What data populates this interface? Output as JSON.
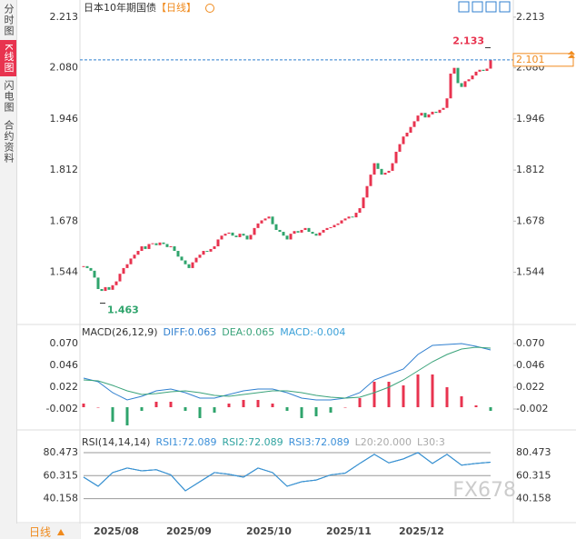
{
  "sidebar_tabs": [
    "分时图",
    "K线图",
    "闪电图",
    "合约资料"
  ],
  "bottom_tab": "日线",
  "watermark": "FX678",
  "chart_data": [
    {
      "type": "candlestick",
      "title": "日本10年期国债",
      "period": "【日线】",
      "up_color": "#e8334f",
      "down_color": "#2fa46c",
      "values": [
        1.56,
        1.555,
        1.548,
        1.53,
        1.5,
        1.495,
        1.505,
        1.498,
        1.51,
        1.52,
        1.54,
        1.555,
        1.565,
        1.58,
        1.59,
        1.6,
        1.612,
        1.605,
        1.618,
        1.62,
        1.615,
        1.622,
        1.618,
        1.61,
        1.612,
        1.6,
        1.585,
        1.575,
        1.565,
        1.555,
        1.57,
        1.582,
        1.59,
        1.6,
        1.598,
        1.605,
        1.612,
        1.63,
        1.64,
        1.645,
        1.648,
        1.64,
        1.636,
        1.645,
        1.64,
        1.63,
        1.642,
        1.66,
        1.672,
        1.68,
        1.685,
        1.69,
        1.67,
        1.655,
        1.65,
        1.64,
        1.63,
        1.645,
        1.652,
        1.648,
        1.655,
        1.66,
        1.65,
        1.645,
        1.64,
        1.648,
        1.655,
        1.66,
        1.662,
        1.668,
        1.672,
        1.68,
        1.685,
        1.69,
        1.688,
        1.7,
        1.712,
        1.74,
        1.77,
        1.8,
        1.83,
        1.815,
        1.8,
        1.805,
        1.81,
        1.83,
        1.86,
        1.88,
        1.9,
        1.91,
        1.925,
        1.94,
        1.955,
        1.962,
        1.95,
        1.958,
        1.965,
        1.962,
        1.97,
        1.975,
        2.0,
        2.065,
        2.08,
        2.04,
        2.03,
        2.045,
        2.05,
        2.06,
        2.07,
        2.075,
        2.072,
        2.078,
        2.101
      ],
      "high": 2.133,
      "low": 1.463,
      "ylim": [
        1.407,
        2.258
      ],
      "yticks": [
        2.213,
        {
          "value": 2.08,
          "label": "2.080"
        },
        1.946,
        1.812,
        1.678,
        1.544
      ],
      "xticks": [
        {
          "value": 9,
          "label": "2025/08"
        },
        {
          "value": 29,
          "label": "2025/09"
        },
        {
          "value": 51,
          "label": "2025/10"
        },
        {
          "value": 73,
          "label": "2025/11"
        },
        {
          "value": 93,
          "label": "2025/12"
        }
      ]
    },
    {
      "type": "macd",
      "title": "MACD(26,12,9)",
      "series": [
        {
          "name": "DIFF:0.063",
          "color": "#2f7fcf",
          "values": [
            0.032,
            0.028,
            0.016,
            0.008,
            0.012,
            0.018,
            0.02,
            0.016,
            0.01,
            0.01,
            0.014,
            0.018,
            0.02,
            0.02,
            0.016,
            0.01,
            0.008,
            0.008,
            0.01,
            0.016,
            0.03,
            0.036,
            0.042,
            0.058,
            0.068,
            0.069,
            0.07,
            0.067,
            0.063
          ]
        },
        {
          "name": "DEA:0.065",
          "color": "#3aa37a",
          "values": [
            0.03,
            0.029,
            0.024,
            0.018,
            0.014,
            0.015,
            0.017,
            0.018,
            0.016,
            0.013,
            0.012,
            0.014,
            0.016,
            0.018,
            0.018,
            0.016,
            0.013,
            0.011,
            0.01,
            0.011,
            0.016,
            0.022,
            0.03,
            0.04,
            0.05,
            0.058,
            0.064,
            0.066,
            0.065
          ]
        },
        {
          "name": "MACD:-0.004",
          "color": "#3aa0d8",
          "values": [
            0.004,
            0.0,
            -0.016,
            -0.02,
            -0.004,
            0.006,
            0.006,
            -0.004,
            -0.012,
            -0.006,
            0.004,
            0.008,
            0.008,
            0.004,
            -0.004,
            -0.012,
            -0.01,
            -0.006,
            0.0,
            0.01,
            0.028,
            0.028,
            0.024,
            0.036,
            0.036,
            0.022,
            0.012,
            0.002,
            -0.004
          ]
        }
      ],
      "up_color": "#e8334f",
      "down_color": "#2fa46c",
      "ylim": [
        -0.022,
        0.088
      ],
      "yticks": [
        {
          "value": 0.07,
          "label": "0.070"
        },
        0.046,
        0.022,
        -0.002
      ]
    },
    {
      "type": "rsi",
      "title": "RSI(14,14,14)",
      "series": [
        {
          "name": "RSI1:72.089",
          "color": "#3b8fd8",
          "values": [
            59.0,
            51.0,
            63.0,
            67.0,
            64.5,
            65.5,
            61.0,
            47.0,
            55.0,
            63.0,
            61.5,
            59.0,
            67.0,
            63.0,
            51.0,
            55.0,
            56.5,
            61.0,
            62.5,
            71.0,
            79.0,
            71.5,
            75.0,
            80.5,
            71.0,
            79.0,
            69.5,
            71.0,
            72.089
          ]
        },
        {
          "name": "RSI2:72.089",
          "color": "#2fa3a0",
          "values": [
            59.0,
            51.0,
            63.0,
            67.0,
            64.5,
            65.5,
            61.0,
            47.0,
            55.0,
            63.0,
            61.5,
            59.0,
            67.0,
            63.0,
            51.0,
            55.0,
            56.5,
            61.0,
            62.5,
            71.0,
            79.0,
            71.5,
            75.0,
            80.5,
            71.0,
            79.0,
            69.5,
            71.0,
            72.089
          ]
        },
        {
          "name": "RSI3:72.089",
          "color": "#3b8fd8",
          "values": [
            59.0,
            51.0,
            63.0,
            67.0,
            64.5,
            65.5,
            61.0,
            47.0,
            55.0,
            63.0,
            61.5,
            59.0,
            67.0,
            63.0,
            51.0,
            55.0,
            56.5,
            61.0,
            62.5,
            71.0,
            79.0,
            71.5,
            75.0,
            80.5,
            71.0,
            79.0,
            69.5,
            71.0,
            72.089
          ]
        }
      ],
      "levels": [
        "L20:20.000",
        "L30:3"
      ],
      "ylim": [
        21.51,
        94.8
      ],
      "yticks": [
        80.473,
        60.315,
        40.158
      ],
      "grid": true
    }
  ]
}
